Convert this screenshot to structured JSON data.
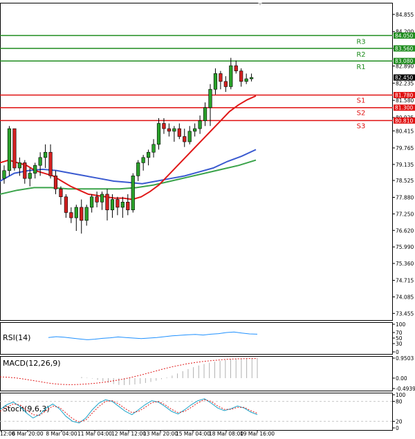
{
  "chart_data": {
    "type": "candlestick",
    "main": {
      "ylim": [
        73.2,
        85.3
      ],
      "y_ticks": [
        "84.855",
        "84.200",
        "83.560",
        "82.890",
        "82.235",
        "81.580",
        "80.925",
        "80.415",
        "79.765",
        "79.135",
        "78.525",
        "77.880",
        "77.250",
        "76.620",
        "75.990",
        "75.360",
        "74.715",
        "74.085",
        "73.455"
      ],
      "levels": [
        {
          "label": "R3",
          "value": 84.05,
          "value_label": "84.050",
          "color": "#1e8c1e"
        },
        {
          "label": "R2",
          "value": 83.56,
          "value_label": "83.560",
          "color": "#1e8c1e"
        },
        {
          "label": "R1",
          "value": 83.08,
          "value_label": "83.080",
          "color": "#1e8c1e"
        },
        {
          "label": "S1",
          "value": 81.78,
          "value_label": "81.780",
          "color": "#e01010"
        },
        {
          "label": "S2",
          "value": 81.3,
          "value_label": "81.300",
          "color": "#e01010"
        },
        {
          "label": "S3",
          "value": 80.81,
          "value_label": "80.810",
          "color": "#e01010"
        }
      ],
      "current_price": {
        "value": 82.45,
        "label": "82.450"
      },
      "candles": [
        [
          78.6,
          79.1,
          78.4,
          78.9
        ],
        [
          78.9,
          80.6,
          78.7,
          80.5
        ],
        [
          80.5,
          80.5,
          78.9,
          79.0
        ],
        [
          79.0,
          79.4,
          78.7,
          79.2
        ],
        [
          79.2,
          79.3,
          78.4,
          78.6
        ],
        [
          78.6,
          79.0,
          78.3,
          78.8
        ],
        [
          78.8,
          79.2,
          78.6,
          79.1
        ],
        [
          79.1,
          79.6,
          78.7,
          79.4
        ],
        [
          79.4,
          79.9,
          79.0,
          79.6
        ],
        [
          79.6,
          79.9,
          78.6,
          78.7
        ],
        [
          78.7,
          78.9,
          78.0,
          78.2
        ],
        [
          78.2,
          78.3,
          77.6,
          77.9
        ],
        [
          77.9,
          78.0,
          77.1,
          77.3
        ],
        [
          77.3,
          77.5,
          76.9,
          77.1
        ],
        [
          77.1,
          77.6,
          76.6,
          77.5
        ],
        [
          77.5,
          77.8,
          76.5,
          77.0
        ],
        [
          77.0,
          77.6,
          76.8,
          77.5
        ],
        [
          77.5,
          78.0,
          77.3,
          77.9
        ],
        [
          77.9,
          78.1,
          77.5,
          77.7
        ],
        [
          77.7,
          78.1,
          77.4,
          78.0
        ],
        [
          78.0,
          78.2,
          77.0,
          77.4
        ],
        [
          77.4,
          78.0,
          77.1,
          77.8
        ],
        [
          77.8,
          77.9,
          77.2,
          77.5
        ],
        [
          77.5,
          77.9,
          77.1,
          77.7
        ],
        [
          77.7,
          78.0,
          77.2,
          77.4
        ],
        [
          77.4,
          78.8,
          77.3,
          78.7
        ],
        [
          78.7,
          79.3,
          78.5,
          79.2
        ],
        [
          79.2,
          79.5,
          78.9,
          79.4
        ],
        [
          79.4,
          79.7,
          79.1,
          79.6
        ],
        [
          79.6,
          80.1,
          79.4,
          79.9
        ],
        [
          79.9,
          80.9,
          79.7,
          80.7
        ],
        [
          80.7,
          80.9,
          80.3,
          80.5
        ],
        [
          80.5,
          80.7,
          80.2,
          80.4
        ],
        [
          80.4,
          80.6,
          80.0,
          80.5
        ],
        [
          80.5,
          80.7,
          80.1,
          80.2
        ],
        [
          80.2,
          80.5,
          79.8,
          80.0
        ],
        [
          80.0,
          80.6,
          79.9,
          80.4
        ],
        [
          80.4,
          80.7,
          80.2,
          80.5
        ],
        [
          80.5,
          81.0,
          80.3,
          80.8
        ],
        [
          80.8,
          81.5,
          80.6,
          81.3
        ],
        [
          81.3,
          82.2,
          80.6,
          82.0
        ],
        [
          82.0,
          82.8,
          81.8,
          82.6
        ],
        [
          82.6,
          82.7,
          82.0,
          82.3
        ],
        [
          82.3,
          82.5,
          81.9,
          82.1
        ],
        [
          82.1,
          83.2,
          82.0,
          82.9
        ],
        [
          82.9,
          83.1,
          82.6,
          82.7
        ],
        [
          82.7,
          82.8,
          82.1,
          82.3
        ],
        [
          82.3,
          82.6,
          82.2,
          82.4
        ],
        [
          82.4,
          82.6,
          82.3,
          82.45
        ]
      ],
      "ma_red": [
        79.2,
        79.3,
        79.2,
        79.1,
        78.9,
        78.8,
        78.7,
        78.5,
        78.3,
        78.15,
        78.0,
        77.95,
        77.9,
        77.85,
        77.85,
        77.8,
        77.9,
        78.1,
        78.35,
        78.7,
        79.05,
        79.4,
        79.75,
        80.1,
        80.45,
        80.8,
        81.15,
        81.4,
        81.6,
        81.75
      ],
      "ma_blue": [
        78.5,
        78.8,
        78.9,
        78.95,
        78.9,
        78.8,
        78.7,
        78.6,
        78.5,
        78.45,
        78.4,
        78.5,
        78.6,
        78.7,
        78.85,
        79.0,
        79.25,
        79.45,
        79.7
      ],
      "ma_green": [
        78.0,
        78.15,
        78.25,
        78.25,
        78.2,
        78.2,
        78.2,
        78.2,
        78.25,
        78.35,
        78.5,
        78.65,
        78.8,
        78.95,
        79.1,
        79.3
      ]
    },
    "x_tick_labels": [
      "12:00",
      "6 Mar 20:00",
      "8 Mar 04:00",
      "11 Mar 04:00",
      "12 Mar 12:00",
      "13 Mar 20:00",
      "15 Mar 04:00",
      "18 Mar 08:00",
      "19 Mar 16:00"
    ],
    "rsi": {
      "label": "RSI(14)",
      "y_ticks": [
        "100",
        "70",
        "50",
        "30",
        "0"
      ],
      "values": [
        52,
        55,
        53,
        50,
        47,
        44,
        46,
        49,
        51,
        54,
        52,
        50,
        48,
        50,
        52,
        55,
        58,
        60,
        62,
        63,
        61,
        64,
        66,
        70,
        72,
        68,
        65,
        64
      ]
    },
    "macd": {
      "label": "MACD(12,26,9)",
      "y_ticks": [
        "0.9503",
        "0.00",
        "-0.4939"
      ],
      "histogram": [
        0.05,
        0.02,
        -0.02,
        -0.08,
        -0.15,
        -0.22,
        -0.28,
        -0.32,
        -0.33,
        -0.32,
        -0.3,
        -0.27,
        -0.23,
        -0.18,
        -0.12,
        -0.05,
        0.03,
        0.12,
        0.22,
        0.33,
        0.43,
        0.52,
        0.6,
        0.67,
        0.73,
        0.78,
        0.82,
        0.86,
        0.89,
        0.91,
        0.93,
        0.94,
        0.95,
        0.95
      ],
      "signal": [
        0.06,
        0.04,
        0.01,
        -0.04,
        -0.1,
        -0.16,
        -0.22,
        -0.27,
        -0.3,
        -0.31,
        -0.3,
        -0.28,
        -0.25,
        -0.21,
        -0.16,
        -0.1,
        -0.03,
        0.05,
        0.14,
        0.24,
        0.34,
        0.44,
        0.53,
        0.61,
        0.68,
        0.74,
        0.79,
        0.83,
        0.86,
        0.89,
        0.91,
        0.92,
        0.93,
        0.93
      ]
    },
    "stoch": {
      "label": "Stoch(9,6,3)",
      "y_ticks": [
        "100",
        "80",
        "20",
        "0"
      ],
      "main": [
        55,
        70,
        78,
        65,
        45,
        30,
        40,
        60,
        72,
        58,
        35,
        20,
        15,
        30,
        55,
        75,
        85,
        80,
        65,
        50,
        40,
        55,
        70,
        82,
        78,
        65,
        50,
        42,
        55,
        70,
        82,
        88,
        75,
        60,
        52,
        58,
        66,
        60,
        48,
        40
      ],
      "signal": [
        50,
        62,
        72,
        70,
        55,
        40,
        38,
        52,
        66,
        62,
        45,
        28,
        18,
        24,
        45,
        65,
        80,
        82,
        72,
        58,
        46,
        50,
        62,
        76,
        80,
        70,
        56,
        46,
        50,
        62,
        76,
        85,
        80,
        66,
        56,
        56,
        62,
        62,
        52,
        44
      ]
    }
  }
}
